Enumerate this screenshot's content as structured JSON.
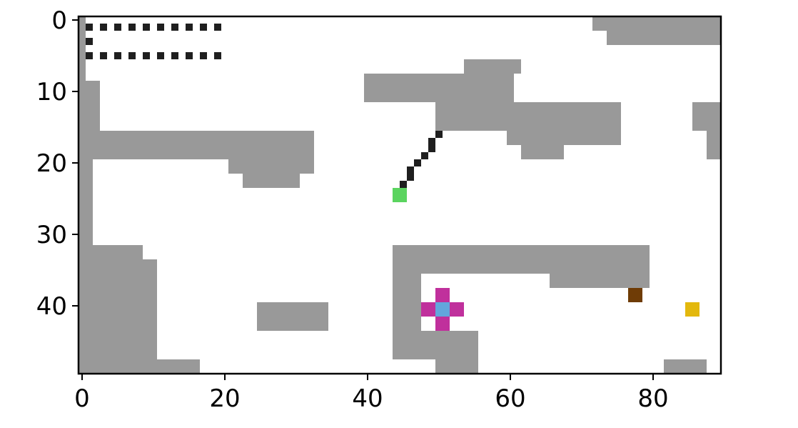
{
  "chart_data": {
    "type": "heatmap",
    "title": "",
    "xlabel": "",
    "ylabel": "",
    "xlim": [
      0,
      89
    ],
    "ylim": [
      49,
      0
    ],
    "grid": false,
    "x_ticks": [
      0,
      20,
      40,
      60,
      80
    ],
    "y_ticks": [
      0,
      10,
      20,
      30,
      40
    ],
    "x_tick_labels": [
      "0",
      "20",
      "40",
      "60",
      "80"
    ],
    "y_tick_labels": [
      "0",
      "10",
      "20",
      "30",
      "40"
    ],
    "colors": {
      "empty": "#ffffff",
      "wall": "#999999",
      "path": "#1f1f1f",
      "agent": "#5bd45f",
      "cross": "#c0309c",
      "cross_center": "#63a6dc",
      "brown_item": "#6f3c06",
      "yellow_item": "#e3b80d"
    },
    "walls": [
      {
        "x": [
          0,
          0
        ],
        "y": [
          0,
          49
        ]
      },
      {
        "x": [
          1,
          1
        ],
        "y": [
          9,
          31
        ]
      },
      {
        "x": [
          2,
          2
        ],
        "y": [
          9,
          15
        ]
      },
      {
        "x": [
          1,
          32
        ],
        "y": [
          16,
          19
        ]
      },
      {
        "x": [
          21,
          32
        ],
        "y": [
          20,
          21
        ]
      },
      {
        "x": [
          23,
          30
        ],
        "y": [
          22,
          23
        ]
      },
      {
        "x": [
          1,
          8
        ],
        "y": [
          32,
          33
        ]
      },
      {
        "x": [
          1,
          10
        ],
        "y": [
          34,
          47
        ]
      },
      {
        "x": [
          1,
          16
        ],
        "y": [
          48,
          49
        ]
      },
      {
        "x": [
          25,
          34
        ],
        "y": [
          40,
          43
        ]
      },
      {
        "x": [
          40,
          54
        ],
        "y": [
          8,
          11
        ]
      },
      {
        "x": [
          54,
          61
        ],
        "y": [
          6,
          7
        ]
      },
      {
        "x": [
          54,
          60
        ],
        "y": [
          8,
          11
        ]
      },
      {
        "x": [
          50,
          60
        ],
        "y": [
          12,
          15
        ]
      },
      {
        "x": [
          61,
          75
        ],
        "y": [
          12,
          17
        ]
      },
      {
        "x": [
          60,
          64
        ],
        "y": [
          16,
          17
        ]
      },
      {
        "x": [
          62,
          67
        ],
        "y": [
          18,
          19
        ]
      },
      {
        "x": [
          72,
          89
        ],
        "y": [
          0,
          1
        ]
      },
      {
        "x": [
          74,
          89
        ],
        "y": [
          2,
          3
        ]
      },
      {
        "x": [
          86,
          89
        ],
        "y": [
          12,
          15
        ]
      },
      {
        "x": [
          88,
          89
        ],
        "y": [
          16,
          19
        ]
      },
      {
        "x": [
          44,
          79
        ],
        "y": [
          32,
          35
        ]
      },
      {
        "x": [
          66,
          79
        ],
        "y": [
          36,
          37
        ]
      },
      {
        "x": [
          44,
          47
        ],
        "y": [
          36,
          43
        ]
      },
      {
        "x": [
          44,
          55
        ],
        "y": [
          44,
          47
        ]
      },
      {
        "x": [
          50,
          55
        ],
        "y": [
          48,
          49
        ]
      },
      {
        "x": [
          82,
          87
        ],
        "y": [
          48,
          49
        ]
      }
    ],
    "path_cells": [
      [
        1,
        1
      ],
      [
        1,
        3
      ],
      [
        1,
        5
      ],
      [
        3,
        1
      ],
      [
        5,
        1
      ],
      [
        7,
        1
      ],
      [
        9,
        1
      ],
      [
        11,
        1
      ],
      [
        13,
        1
      ],
      [
        15,
        1
      ],
      [
        17,
        1
      ],
      [
        19,
        1
      ],
      [
        3,
        5
      ],
      [
        5,
        5
      ],
      [
        7,
        5
      ],
      [
        9,
        5
      ],
      [
        11,
        5
      ],
      [
        13,
        5
      ],
      [
        15,
        5
      ],
      [
        17,
        5
      ],
      [
        19,
        5
      ],
      [
        50,
        16
      ],
      [
        49,
        17
      ],
      [
        49,
        18
      ],
      [
        48,
        19
      ],
      [
        47,
        20
      ],
      [
        46,
        21
      ],
      [
        46,
        22
      ],
      [
        45,
        23
      ]
    ],
    "agent_cells": [
      [
        44,
        24
      ],
      [
        45,
        24
      ],
      [
        44,
        25
      ],
      [
        45,
        25
      ]
    ],
    "cross_cells": [
      [
        50,
        38
      ],
      [
        51,
        38
      ],
      [
        50,
        39
      ],
      [
        51,
        39
      ],
      [
        48,
        40
      ],
      [
        49,
        40
      ],
      [
        52,
        40
      ],
      [
        53,
        40
      ],
      [
        48,
        41
      ],
      [
        49,
        41
      ],
      [
        52,
        41
      ],
      [
        53,
        41
      ],
      [
        50,
        42
      ],
      [
        51,
        42
      ],
      [
        50,
        43
      ],
      [
        51,
        43
      ]
    ],
    "cross_center_cells": [
      [
        50,
        40
      ],
      [
        51,
        40
      ],
      [
        50,
        41
      ],
      [
        51,
        41
      ]
    ],
    "brown_item_cells": [
      [
        77,
        38
      ],
      [
        78,
        38
      ],
      [
        77,
        39
      ],
      [
        78,
        39
      ]
    ],
    "yellow_item_cells": [
      [
        85,
        40
      ],
      [
        86,
        40
      ],
      [
        85,
        41
      ],
      [
        86,
        41
      ]
    ]
  }
}
